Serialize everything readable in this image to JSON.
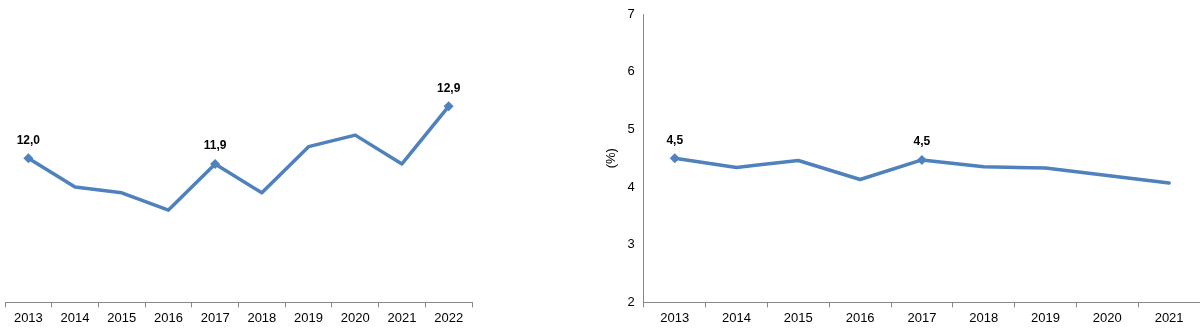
{
  "chart_data": [
    {
      "type": "line",
      "categories": [
        "2013",
        "2014",
        "2015",
        "2016",
        "2017",
        "2018",
        "2019",
        "2020",
        "2021",
        "2022"
      ],
      "series": [
        {
          "color": "#4f81bd",
          "values": [
            12.0,
            11.5,
            11.4,
            11.1,
            11.9,
            11.4,
            12.2,
            12.4,
            11.9,
            12.9
          ],
          "value_labels": [
            "12,0",
            null,
            null,
            null,
            "11,9",
            null,
            null,
            null,
            null,
            "12,9"
          ]
        }
      ],
      "tick_labels": "x",
      "grid": false,
      "legend": false
    },
    {
      "type": "line",
      "ylabel": "(%)",
      "categories": [
        "2013",
        "2014",
        "2015",
        "2016",
        "2017",
        "2018",
        "2019",
        "2020",
        "2021"
      ],
      "series": [
        {
          "color": "#4f81bd",
          "values": [
            4.5,
            4.34,
            4.46,
            4.13,
            4.47,
            4.35,
            4.33,
            4.2,
            4.07
          ],
          "value_labels": [
            "4,5",
            null,
            null,
            null,
            "4,5",
            null,
            null,
            null,
            null
          ]
        }
      ],
      "ylim": [
        2,
        7
      ],
      "yticks": [
        2,
        3,
        4,
        5,
        6,
        7
      ],
      "grid": false,
      "legend": false
    }
  ]
}
